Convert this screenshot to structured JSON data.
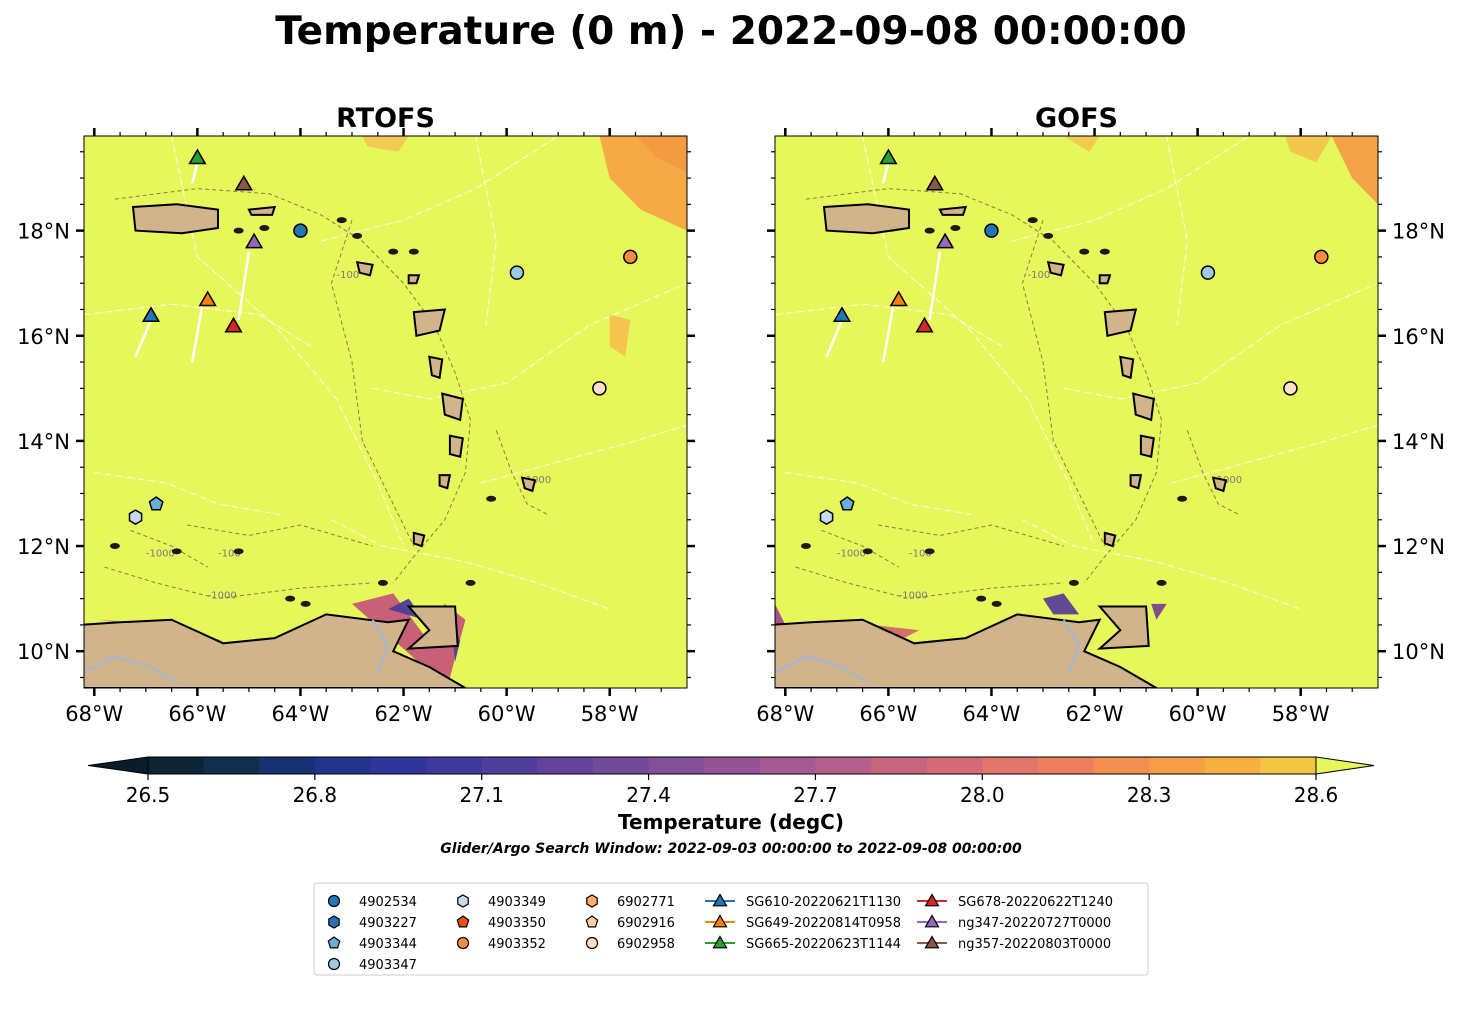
{
  "figure": {
    "title": "Temperature (0 m) - 2022-09-08 00:00:00",
    "search_window": "Glider/Argo Search Window: 2022-09-03 00:00:00 to 2022-09-08 00:00:00"
  },
  "chart_data": {
    "type": "heatmap",
    "variable": "Temperature (0 m)",
    "time": "2022-09-08 00:00:00",
    "panels": [
      {
        "title": "RTOFS",
        "tick_side": "left"
      },
      {
        "title": "GOFS",
        "tick_side": "right"
      }
    ],
    "xlim": [
      -68.2,
      -56.5
    ],
    "ylim": [
      9.3,
      19.8
    ],
    "xticks": [
      -68,
      -66,
      -64,
      -62,
      -60,
      -58
    ],
    "yticks": [
      10,
      12,
      14,
      16,
      18
    ],
    "xtick_labels": [
      "68°W",
      "66°W",
      "64°W",
      "62°W",
      "60°W",
      "58°W"
    ],
    "ytick_labels": [
      "10°N",
      "12°N",
      "14°N",
      "16°N",
      "18°N"
    ],
    "colorbar": {
      "label": "Temperature (degC)",
      "min": 26.5,
      "max": 28.6,
      "step": 0.1,
      "ticks": [
        26.5,
        26.8,
        27.1,
        27.4,
        27.7,
        28.0,
        28.3,
        28.6
      ],
      "tick_labels": [
        "26.5",
        "26.8",
        "27.1",
        "27.4",
        "27.7",
        "28.0",
        "28.3",
        "28.6"
      ],
      "extend": "both",
      "colormap": "thermal"
    },
    "contour_labels": [
      "-100",
      "-1000"
    ],
    "land_color": "#d2b48c",
    "ocean_background": "#e5f75a",
    "argo_floats": [
      {
        "name": "4902534",
        "marker": "circle",
        "color": "#1f77b4",
        "lon": -64.0,
        "lat": 18.0
      },
      {
        "name": "4903227",
        "marker": "hexagon",
        "color": "#2a6fb0",
        "lon": null,
        "lat": null
      },
      {
        "name": "4903344",
        "marker": "pentagon",
        "color": "#6aaedc",
        "lon": -66.8,
        "lat": 12.8
      },
      {
        "name": "4903347",
        "marker": "circle",
        "color": "#9ecae1",
        "lon": -59.8,
        "lat": 17.2
      },
      {
        "name": "4903349",
        "marker": "hexagon",
        "color": "#c6dbef",
        "lon": -67.2,
        "lat": 12.55
      },
      {
        "name": "4903350",
        "marker": "pentagon",
        "color": "#e6550d",
        "lon": null,
        "lat": null
      },
      {
        "name": "4903352",
        "marker": "circle",
        "color": "#fd8d3c",
        "lon": -57.6,
        "lat": 17.5
      },
      {
        "name": "6902771",
        "marker": "hexagon",
        "color": "#fdae6b",
        "lon": null,
        "lat": null
      },
      {
        "name": "6902916",
        "marker": "pentagon",
        "color": "#fdd0a2",
        "lon": null,
        "lat": null
      },
      {
        "name": "6902958",
        "marker": "circle",
        "color": "#fee0c8",
        "lon": -58.2,
        "lat": 15.0
      }
    ],
    "gliders": [
      {
        "name": "SG610-20220621T1130",
        "color": "#1f77b4",
        "lon": -66.9,
        "lat": 16.4
      },
      {
        "name": "SG649-20220814T0958",
        "color": "#ff7f0e",
        "lon": -65.8,
        "lat": 16.7
      },
      {
        "name": "SG665-20220623T1144",
        "color": "#2ca02c",
        "lon": -66.0,
        "lat": 19.4
      },
      {
        "name": "SG678-20220622T1240",
        "color": "#d62728",
        "lon": -65.3,
        "lat": 16.2
      },
      {
        "name": "ng347-20220727T0000",
        "color": "#9467bd",
        "lon": -64.9,
        "lat": 17.8
      },
      {
        "name": "ng357-20220803T0000",
        "color": "#8c564b",
        "lon": -65.1,
        "lat": 18.9
      }
    ]
  }
}
